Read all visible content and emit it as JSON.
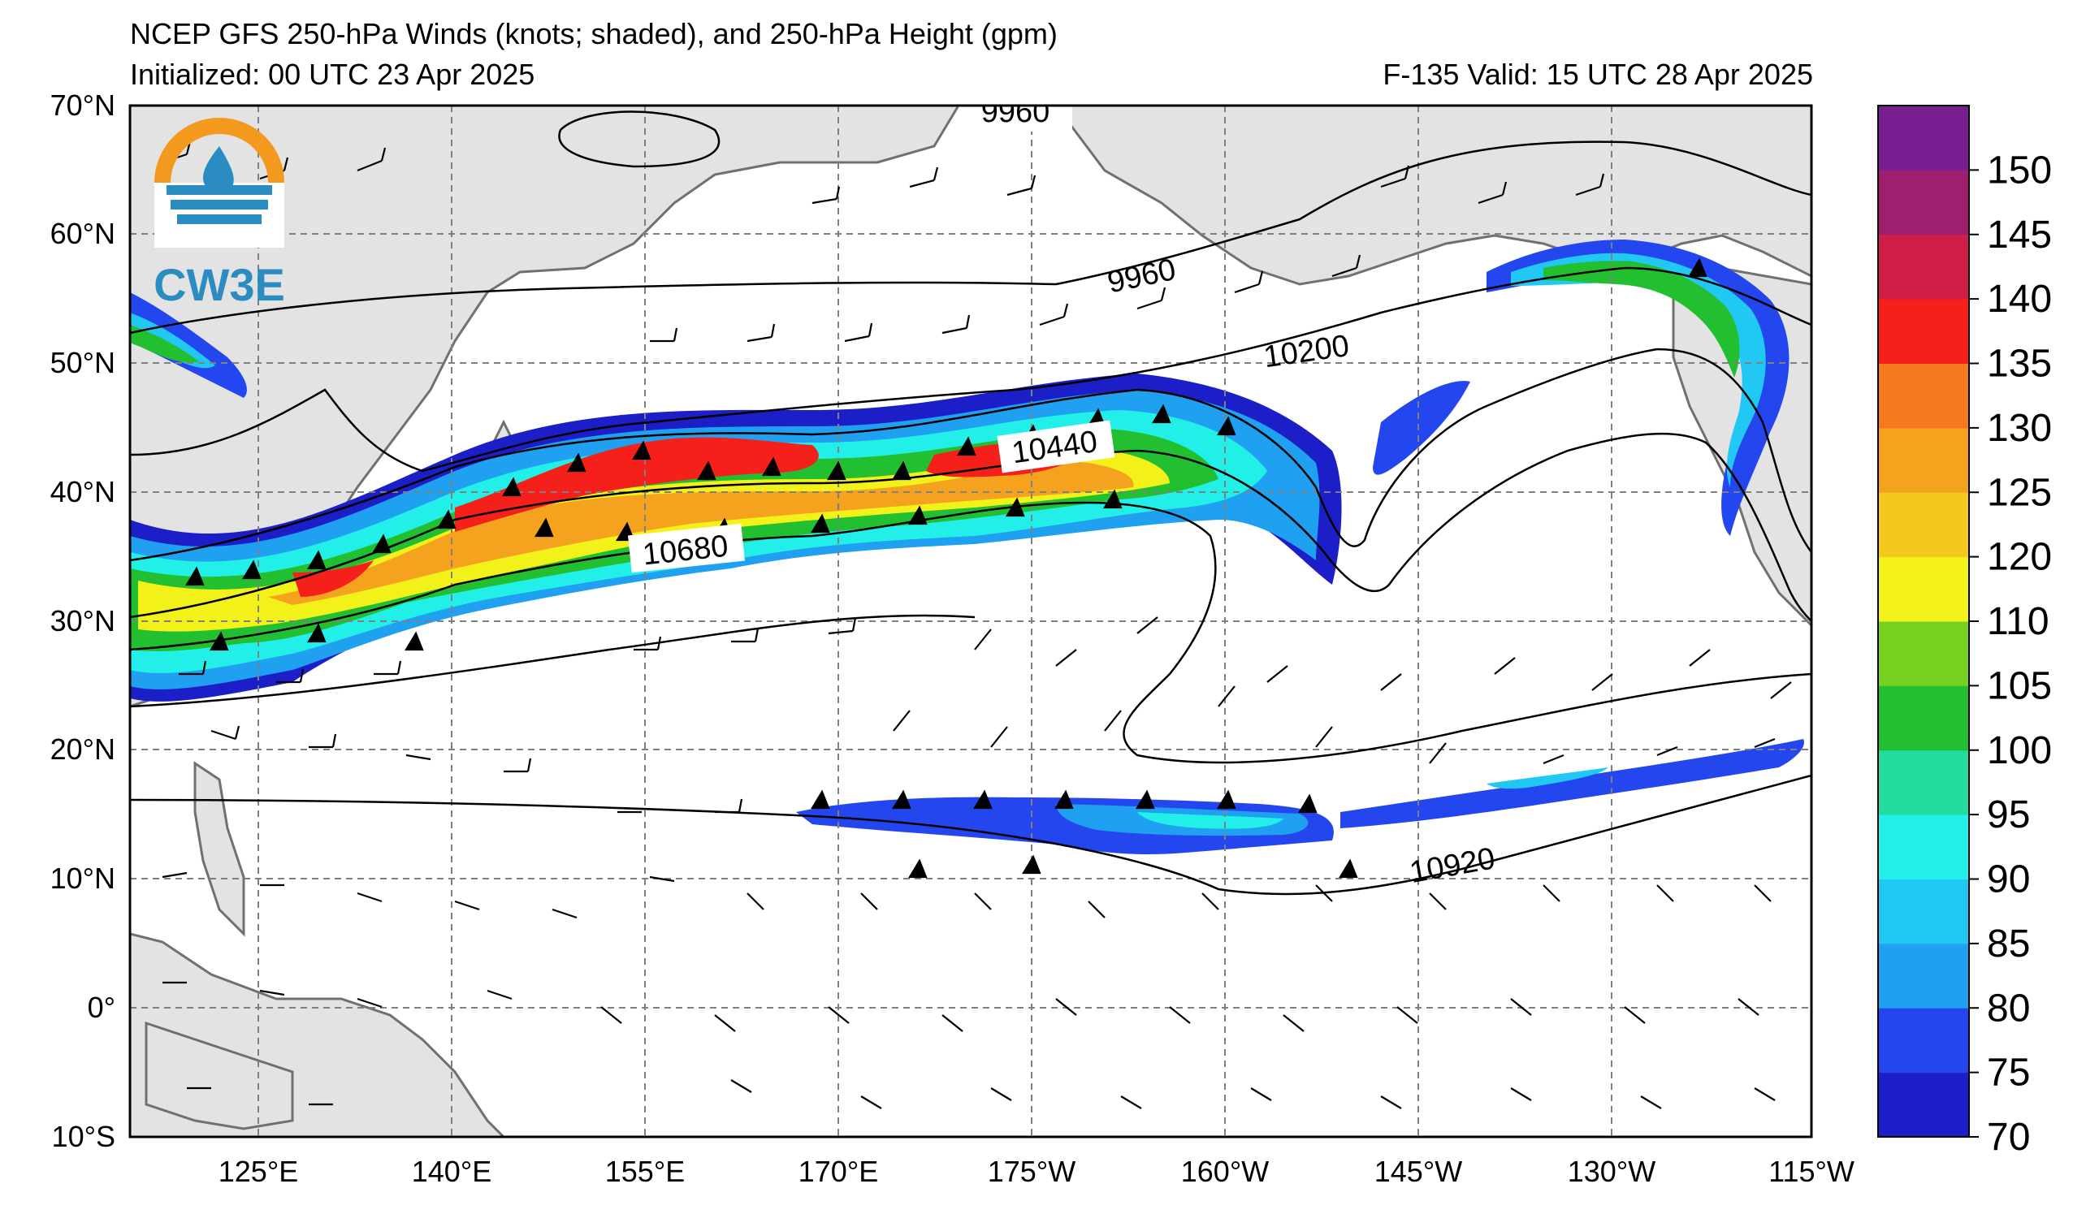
{
  "header": {
    "title_line1": "NCEP GFS 250-hPa Winds (knots; shaded), and 250-hPa Height (gpm)",
    "init_line": "Initialized: 00 UTC 23 Apr 2025",
    "valid_line": "F-135  Valid: 15 UTC 28 Apr 2025"
  },
  "logo": {
    "text": "CW3E",
    "accent": "#f39a1e",
    "brand": "#2a8cc0"
  },
  "axes": {
    "lat_labels": [
      "70°N",
      "60°N",
      "50°N",
      "40°N",
      "30°N",
      "20°N",
      "10°N",
      "0°",
      "10°S"
    ],
    "lon_labels": [
      "125°E",
      "140°E",
      "155°E",
      "170°E",
      "175°W",
      "160°W",
      "145°W",
      "130°W",
      "115°W"
    ]
  },
  "contour_labels": [
    "9960",
    "9960",
    "10200",
    "10440",
    "10680",
    "10920"
  ],
  "colorbar": {
    "labels": [
      "70",
      "75",
      "80",
      "85",
      "90",
      "95",
      "100",
      "105",
      "110",
      "120",
      "125",
      "130",
      "135",
      "140",
      "145",
      "150"
    ],
    "colors": [
      "#1c1fc8",
      "#2446ee",
      "#20a0f0",
      "#22c8f4",
      "#22f0e8",
      "#22dca0",
      "#22c030",
      "#76d020",
      "#f2f21a",
      "#f5c81e",
      "#f5a21e",
      "#f57a1e",
      "#f5201a",
      "#d01e46",
      "#a01e6e",
      "#781e90"
    ]
  }
}
